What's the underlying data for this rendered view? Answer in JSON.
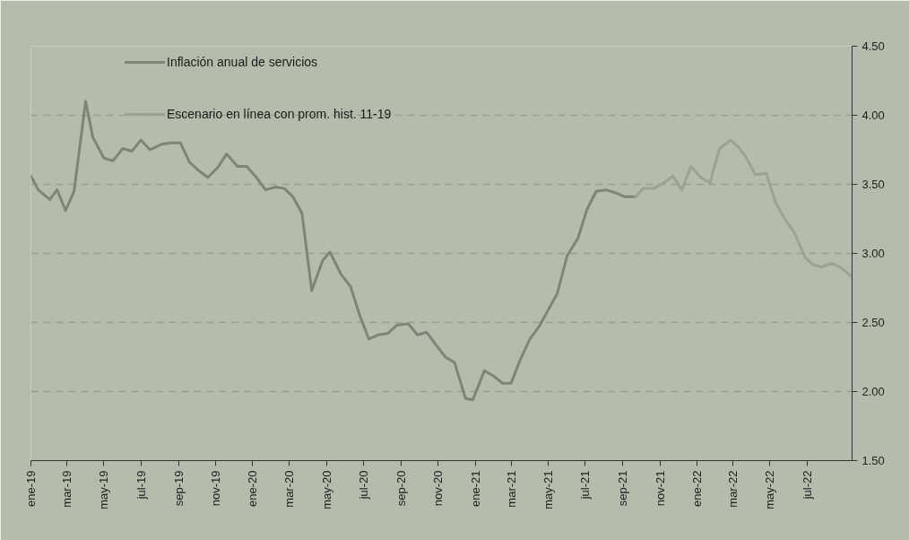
{
  "chart_data": {
    "type": "line",
    "xlim": [
      "2019-01-01",
      "2022-09-13"
    ],
    "ylim": [
      1.5,
      4.5
    ],
    "xticks": [
      {
        "value": "2019-01",
        "label": "ene-19"
      },
      {
        "value": "2019-03",
        "label": "mar-19"
      },
      {
        "value": "2019-05",
        "label": "may-19"
      },
      {
        "value": "2019-07",
        "label": "jul-19"
      },
      {
        "value": "2019-09",
        "label": "sep-19"
      },
      {
        "value": "2019-11",
        "label": "nov-19"
      },
      {
        "value": "2020-01",
        "label": "ene-20"
      },
      {
        "value": "2020-03",
        "label": "mar-20"
      },
      {
        "value": "2020-05",
        "label": "may-20"
      },
      {
        "value": "2020-07",
        "label": "jul-20"
      },
      {
        "value": "2020-09",
        "label": "sep-20"
      },
      {
        "value": "2020-11",
        "label": "nov-20"
      },
      {
        "value": "2021-01",
        "label": "ene-21"
      },
      {
        "value": "2021-03",
        "label": "mar-21"
      },
      {
        "value": "2021-05",
        "label": "may-21"
      },
      {
        "value": "2021-07",
        "label": "jul-21"
      },
      {
        "value": "2021-09",
        "label": "sep-21"
      },
      {
        "value": "2021-11",
        "label": "nov-21"
      },
      {
        "value": "2022-01",
        "label": "ene-22"
      },
      {
        "value": "2022-03",
        "label": "mar-22"
      },
      {
        "value": "2022-05",
        "label": "may-22"
      },
      {
        "value": "2022-07",
        "label": "jul-22"
      }
    ],
    "yticks": [
      {
        "value": 1.5,
        "label": "1.50"
      },
      {
        "value": 2,
        "label": "2.00"
      },
      {
        "value": 2.5,
        "label": "2.50"
      },
      {
        "value": 3,
        "label": "3.00"
      },
      {
        "value": 3.5,
        "label": "3.50"
      },
      {
        "value": 4,
        "label": "4.00"
      },
      {
        "value": 4.5,
        "label": "4.50"
      }
    ],
    "grid": "y",
    "legend": "top left",
    "marker": "none",
    "line_style": "solid",
    "series": [
      {
        "name": "Inflación anual de servicios",
        "color": "#7f8477",
        "x": [
          "2019-01-01",
          "2019-01-13",
          "2019-02-01",
          "2019-02-13",
          "2019-02-27",
          "2019-03-13",
          "2019-04-01",
          "2019-04-13",
          "2019-05-01",
          "2019-05-16",
          "2019-06-01",
          "2019-06-16",
          "2019-07-01",
          "2019-07-16",
          "2019-08-04",
          "2019-08-19",
          "2019-09-04",
          "2019-09-19",
          "2019-10-04",
          "2019-10-19",
          "2019-11-04",
          "2019-11-19",
          "2019-12-07",
          "2019-12-22",
          "2020-01-07",
          "2020-01-22",
          "2020-02-07",
          "2020-02-22",
          "2020-03-07",
          "2020-03-22",
          "2020-04-07",
          "2020-04-25",
          "2020-05-07",
          "2020-05-25",
          "2020-06-10",
          "2020-06-25",
          "2020-07-10",
          "2020-07-25",
          "2020-08-10",
          "2020-08-25",
          "2020-09-13",
          "2020-09-28",
          "2020-10-13",
          "2020-10-28",
          "2020-11-13",
          "2020-11-28",
          "2020-12-16",
          "2020-12-28",
          "2021-01-16",
          "2021-02-01",
          "2021-02-15",
          "2021-03-01",
          "2021-03-16",
          "2021-04-01",
          "2021-04-16",
          "2021-05-01",
          "2021-05-16",
          "2021-06-01",
          "2021-06-19",
          "2021-07-04",
          "2021-07-19",
          "2021-08-04",
          "2021-08-19",
          "2021-09-04",
          "2021-09-22"
        ],
        "values": [
          3.56,
          3.46,
          3.39,
          3.46,
          3.31,
          3.45,
          4.1,
          3.84,
          3.69,
          3.67,
          3.76,
          3.74,
          3.82,
          3.75,
          3.79,
          3.8,
          3.8,
          3.66,
          3.6,
          3.55,
          3.62,
          3.72,
          3.63,
          3.63,
          3.55,
          3.46,
          3.48,
          3.47,
          3.41,
          3.29,
          2.73,
          2.95,
          3.01,
          2.85,
          2.76,
          2.55,
          2.38,
          2.41,
          2.42,
          2.48,
          2.49,
          2.41,
          2.43,
          2.34,
          2.25,
          2.21,
          1.95,
          1.94,
          2.15,
          2.11,
          2.06,
          2.06,
          2.23,
          2.38,
          2.47,
          2.59,
          2.71,
          2.98,
          3.11,
          3.32,
          3.45,
          3.46,
          3.44,
          3.41,
          3.41
        ]
      },
      {
        "name": "Escenario en línea con prom. hist. 11-19",
        "color": "#9da192",
        "x": [
          "2021-09-22",
          "2021-10-04",
          "2021-10-22",
          "2021-11-07",
          "2021-11-22",
          "2021-12-07",
          "2021-12-22",
          "2022-01-07",
          "2022-01-22",
          "2022-02-07",
          "2022-02-25",
          "2022-03-10",
          "2022-03-22",
          "2022-04-07",
          "2022-04-25",
          "2022-05-10",
          "2022-05-25",
          "2022-06-10",
          "2022-06-28",
          "2022-07-10",
          "2022-07-25",
          "2022-08-10",
          "2022-08-25",
          "2022-09-10"
        ],
        "values": [
          3.41,
          3.47,
          3.47,
          3.51,
          3.56,
          3.46,
          3.63,
          3.55,
          3.51,
          3.76,
          3.82,
          3.77,
          3.7,
          3.57,
          3.58,
          3.37,
          3.25,
          3.15,
          2.97,
          2.92,
          2.9,
          2.93,
          2.9,
          2.84
        ]
      }
    ]
  }
}
